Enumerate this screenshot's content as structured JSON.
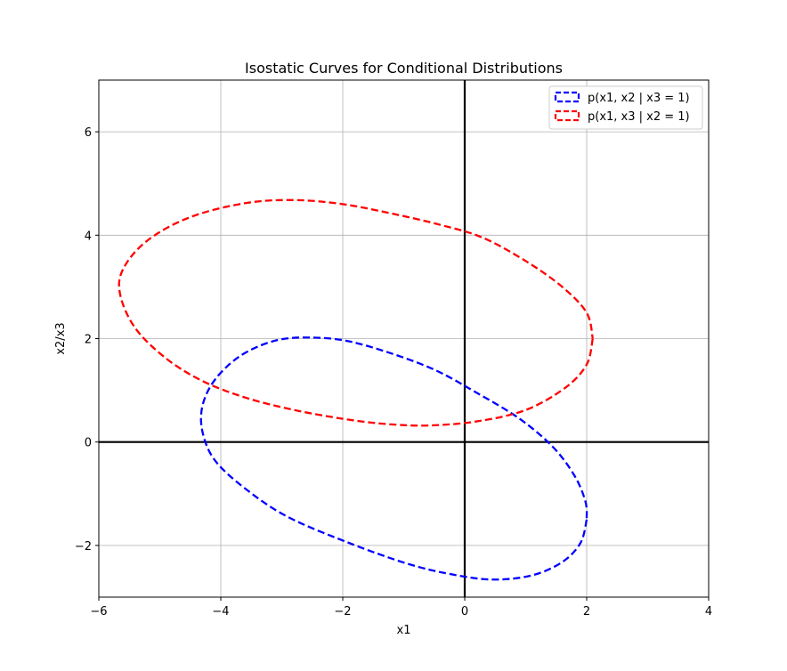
{
  "chart_data": {
    "type": "line",
    "title": "Isostatic Curves for Conditional Distributions",
    "xlabel": "x1",
    "ylabel": "x2/x3",
    "xlim": [
      -6,
      4
    ],
    "ylim": [
      -3,
      7
    ],
    "xticks": [
      -6,
      -4,
      -2,
      0,
      2,
      4
    ],
    "yticks": [
      -2,
      0,
      2,
      4,
      6
    ],
    "xtick_labels": [
      "−6",
      "−4",
      "−2",
      "0",
      "2",
      "4"
    ],
    "ytick_labels": [
      "−2",
      "0",
      "2",
      "4",
      "6"
    ],
    "grid": true,
    "zero_lines": true,
    "legend_position": "top-right",
    "series": [
      {
        "name": "p(x1, x2 | x3 = 1)",
        "color": "#0000ff",
        "style": "dashed",
        "points": [
          [
            2.0,
            -1.5
          ],
          [
            1.9,
            -1.95
          ],
          [
            1.6,
            -2.32
          ],
          [
            1.1,
            -2.58
          ],
          [
            0.45,
            -2.66
          ],
          [
            -0.25,
            -2.55
          ],
          [
            -0.95,
            -2.35
          ],
          [
            -1.9,
            -1.95
          ],
          [
            -2.9,
            -1.45
          ],
          [
            -3.6,
            -0.9
          ],
          [
            -4.1,
            -0.35
          ],
          [
            -4.3,
            0.2
          ],
          [
            -4.3,
            0.7
          ],
          [
            -4.1,
            1.2
          ],
          [
            -3.7,
            1.65
          ],
          [
            -3.2,
            1.93
          ],
          [
            -2.7,
            2.02
          ],
          [
            -2.0,
            1.97
          ],
          [
            -1.3,
            1.75
          ],
          [
            -0.5,
            1.4
          ],
          [
            0.2,
            0.95
          ],
          [
            0.9,
            0.45
          ],
          [
            1.45,
            -0.1
          ],
          [
            1.8,
            -0.65
          ],
          [
            1.98,
            -1.15
          ],
          [
            2.0,
            -1.5
          ]
        ]
      },
      {
        "name": "p(x1, x3 | x2 = 1)",
        "color": "#ff0000",
        "style": "dashed",
        "points": [
          [
            2.1,
            2.0
          ],
          [
            2.0,
            1.5
          ],
          [
            1.65,
            1.05
          ],
          [
            1.0,
            0.62
          ],
          [
            0.2,
            0.4
          ],
          [
            -0.6,
            0.32
          ],
          [
            -1.3,
            0.35
          ],
          [
            -2.0,
            0.45
          ],
          [
            -2.8,
            0.62
          ],
          [
            -3.6,
            0.86
          ],
          [
            -4.3,
            1.18
          ],
          [
            -4.9,
            1.62
          ],
          [
            -5.4,
            2.2
          ],
          [
            -5.65,
            2.85
          ],
          [
            -5.6,
            3.35
          ],
          [
            -5.2,
            3.9
          ],
          [
            -4.5,
            4.35
          ],
          [
            -3.6,
            4.62
          ],
          [
            -2.8,
            4.68
          ],
          [
            -2.0,
            4.6
          ],
          [
            -1.2,
            4.42
          ],
          [
            -0.4,
            4.2
          ],
          [
            0.3,
            3.95
          ],
          [
            1.0,
            3.5
          ],
          [
            1.6,
            3.0
          ],
          [
            2.0,
            2.5
          ],
          [
            2.1,
            2.0
          ]
        ]
      }
    ]
  }
}
